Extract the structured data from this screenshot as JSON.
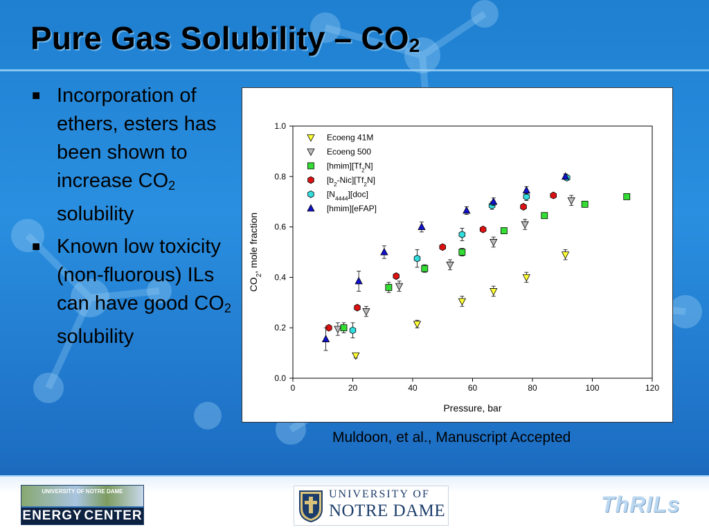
{
  "slide": {
    "title_main": "Pure Gas Solubility – CO",
    "title_sub": "2",
    "bullets": [
      {
        "parts": [
          {
            "t": "Incorporation of ethers, esters has been shown to increase CO"
          },
          {
            "t": "2",
            "sub": true
          },
          {
            "t": " solubility"
          }
        ]
      },
      {
        "parts": [
          {
            "t": "Known low toxicity (non-fluorous) ILs can have good CO"
          },
          {
            "t": "2",
            "sub": true
          },
          {
            "t": " solubility"
          }
        ]
      }
    ],
    "bullet_marker": "■",
    "citation": "Muldoon, et al., Manuscript Accepted",
    "colors": {
      "background": "#1f7fd0",
      "title_text": "#000000",
      "rule": "#9bd0f5"
    }
  },
  "footer": {
    "energy_center": {
      "top_text": "UNIVERSITY OF NOTRE DAME",
      "word1": "ENERGY",
      "word2": "CENTER"
    },
    "notre_dame": {
      "line1": "UNIVERSITY OF",
      "line2": "NOTRE DAME"
    },
    "thrils": "ThRILs"
  },
  "chart_data": {
    "type": "scatter",
    "xlabel": "Pressure, bar",
    "ylabel_parts": [
      {
        "t": "CO"
      },
      {
        "t": "2",
        "sub": true
      },
      {
        "t": ", mole fraction"
      }
    ],
    "xlim": [
      0,
      120
    ],
    "ylim": [
      0,
      1.0
    ],
    "xticks": [
      0,
      20,
      40,
      60,
      80,
      100,
      120
    ],
    "yticks": [
      0.0,
      0.2,
      0.4,
      0.6,
      0.8,
      1.0
    ],
    "ytick_labels": [
      "0.0",
      "0.2",
      "0.4",
      "0.6",
      "0.8",
      "1.0"
    ],
    "grid": false,
    "legend_placement": "top-left",
    "series": [
      {
        "name_parts": [
          {
            "t": "Ecoeng 41M"
          }
        ],
        "marker": "triangle-down",
        "color": "#ffff33",
        "points": [
          [
            21,
            0.09
          ],
          [
            41.5,
            0.215
          ],
          [
            56.5,
            0.305
          ],
          [
            67,
            0.345
          ],
          [
            78,
            0.4
          ],
          [
            91,
            0.49
          ]
        ],
        "errors": [
          0.01,
          0.015,
          0.02,
          0.02,
          0.02,
          0.02
        ]
      },
      {
        "name_parts": [
          {
            "t": "Ecoeng 500"
          }
        ],
        "marker": "triangle-down",
        "color": "#bbbbbb",
        "points": [
          [
            15,
            0.195
          ],
          [
            24.5,
            0.265
          ],
          [
            35.5,
            0.365
          ],
          [
            52.5,
            0.45
          ],
          [
            67,
            0.54
          ],
          [
            77.5,
            0.61
          ],
          [
            93,
            0.705
          ]
        ],
        "errors": [
          0.025,
          0.02,
          0.02,
          0.02,
          0.02,
          0.02,
          0.02
        ]
      },
      {
        "name_parts": [
          {
            "t": "[hmim][Tf"
          },
          {
            "t": "2",
            "sub": true
          },
          {
            "t": "N]"
          }
        ],
        "marker": "square",
        "color": "#33dd33",
        "points": [
          [
            17,
            0.2
          ],
          [
            32,
            0.36
          ],
          [
            44,
            0.435
          ],
          [
            56.5,
            0.5
          ],
          [
            70.5,
            0.585
          ],
          [
            84,
            0.645
          ],
          [
            97.5,
            0.69
          ],
          [
            111.5,
            0.72
          ]
        ],
        "errors": [
          0.02,
          0.02,
          0.015,
          0.015,
          0.01,
          0.01,
          0.01,
          0.01
        ]
      },
      {
        "name_parts": [
          {
            "t": "[b"
          },
          {
            "t": "2",
            "sub": true
          },
          {
            "t": "-Nic][Tf"
          },
          {
            "t": "2",
            "sub": true
          },
          {
            "t": "N]"
          }
        ],
        "marker": "hexagon",
        "color": "#dd1111",
        "points": [
          [
            12,
            0.2
          ],
          [
            21.5,
            0.28
          ],
          [
            34.5,
            0.405
          ],
          [
            50,
            0.52
          ],
          [
            63.5,
            0.59
          ],
          [
            77,
            0.68
          ],
          [
            87,
            0.725
          ]
        ],
        "errors": [
          0,
          0,
          0,
          0,
          0,
          0,
          0
        ]
      },
      {
        "name_parts": [
          {
            "t": "[N"
          },
          {
            "t": "4444",
            "sub": true
          },
          {
            "t": "][doc]"
          }
        ],
        "marker": "hexagon",
        "color": "#33dddd",
        "points": [
          [
            20,
            0.19
          ],
          [
            41.5,
            0.475
          ],
          [
            56.5,
            0.57
          ],
          [
            66.5,
            0.685
          ],
          [
            78,
            0.72
          ],
          [
            91.5,
            0.795
          ]
        ],
        "errors": [
          0.03,
          0.035,
          0.025,
          0.015,
          0.015,
          0.01
        ]
      },
      {
        "name_parts": [
          {
            "t": "[hmim][eFAP]"
          }
        ],
        "marker": "triangle-up",
        "color": "#1111cc",
        "points": [
          [
            11,
            0.155
          ],
          [
            22,
            0.385
          ],
          [
            30.5,
            0.5
          ],
          [
            43,
            0.6
          ],
          [
            58,
            0.665
          ],
          [
            67,
            0.7
          ],
          [
            78,
            0.745
          ],
          [
            91,
            0.8
          ]
        ],
        "errors": [
          0.045,
          0.04,
          0.025,
          0.02,
          0.015,
          0.015,
          0.015,
          0.01
        ]
      }
    ]
  }
}
